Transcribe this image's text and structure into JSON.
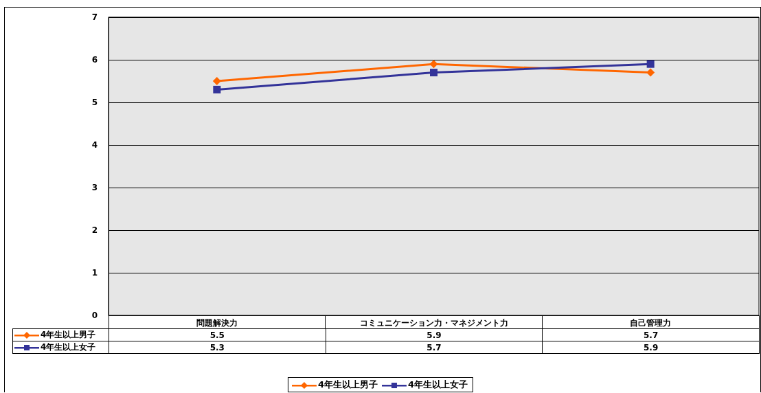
{
  "chart_data": {
    "type": "line",
    "categories": [
      "問題解決力",
      "コミュニケーション力・マネジメント力",
      "自己管理力"
    ],
    "series": [
      {
        "name": "4年生以上男子",
        "color": "#ff6600",
        "marker": "diamond",
        "values": [
          5.5,
          5.9,
          5.7
        ]
      },
      {
        "name": "4年生以上女子",
        "color": "#333399",
        "marker": "square",
        "values": [
          5.3,
          5.7,
          5.9
        ]
      }
    ],
    "ylim": [
      0,
      7
    ],
    "yticks": [
      0,
      1,
      2,
      3,
      4,
      5,
      6,
      7
    ],
    "grid": "y",
    "legend": "bottom",
    "data_labels": true
  }
}
